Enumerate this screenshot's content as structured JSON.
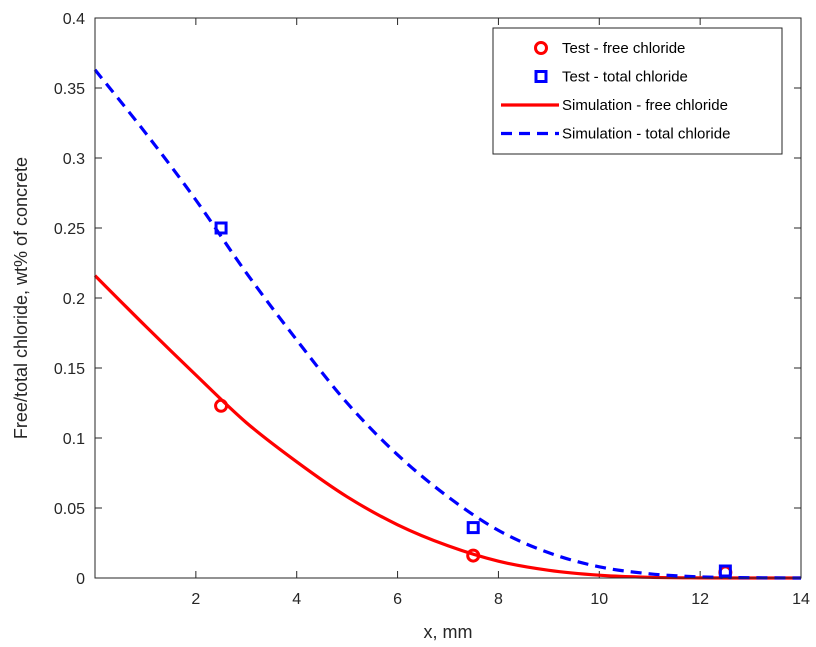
{
  "chart_data": {
    "type": "line",
    "xlabel": "x, mm",
    "ylabel": "Free/total chloride, wt% of concrete",
    "xlim": [
      0,
      14
    ],
    "ylim": [
      0,
      0.4
    ],
    "xticks": [
      2,
      4,
      6,
      8,
      10,
      12,
      14
    ],
    "xtick_labels": [
      "2",
      "4",
      "6",
      "8",
      "10",
      "12",
      "14"
    ],
    "yticks": [
      0,
      0.05,
      0.1,
      0.15,
      0.2,
      0.25,
      0.3,
      0.35,
      0.4
    ],
    "ytick_labels": [
      "0",
      "0.05",
      "0.1",
      "0.15",
      "0.2",
      "0.25",
      "0.3",
      "0.35",
      "0.4"
    ],
    "grid": false,
    "legend_position": "top-right",
    "series": [
      {
        "name": "Test - free chloride",
        "kind": "marker",
        "marker": "circle",
        "color": "#ff0000",
        "x": [
          2.5,
          7.5,
          12.5
        ],
        "y": [
          0.123,
          0.016,
          0.004
        ]
      },
      {
        "name": "Test - total chloride",
        "kind": "marker",
        "marker": "square",
        "color": "#0000ff",
        "x": [
          2.5,
          7.5,
          12.5
        ],
        "y": [
          0.25,
          0.036,
          0.005
        ]
      },
      {
        "name": "Simulation - free chloride",
        "kind": "line",
        "dash": "solid",
        "color": "#ff0000",
        "x": [
          0,
          1,
          2,
          3,
          4,
          5,
          6,
          7,
          8,
          9,
          10,
          11,
          12,
          13,
          14
        ],
        "y": [
          0.216,
          0.18,
          0.145,
          0.111,
          0.083,
          0.058,
          0.038,
          0.023,
          0.012,
          0.0055,
          0.002,
          0.0005,
          0.0001,
          0,
          0
        ]
      },
      {
        "name": "Simulation - total chloride",
        "kind": "line",
        "dash": "dashed",
        "color": "#0000ff",
        "x": [
          0,
          1,
          2,
          3,
          4,
          5,
          6,
          7,
          8,
          9,
          10,
          11,
          12,
          13,
          14
        ],
        "y": [
          0.363,
          0.318,
          0.27,
          0.218,
          0.17,
          0.125,
          0.088,
          0.058,
          0.034,
          0.018,
          0.008,
          0.003,
          0.0008,
          0.0002,
          0
        ]
      }
    ]
  }
}
